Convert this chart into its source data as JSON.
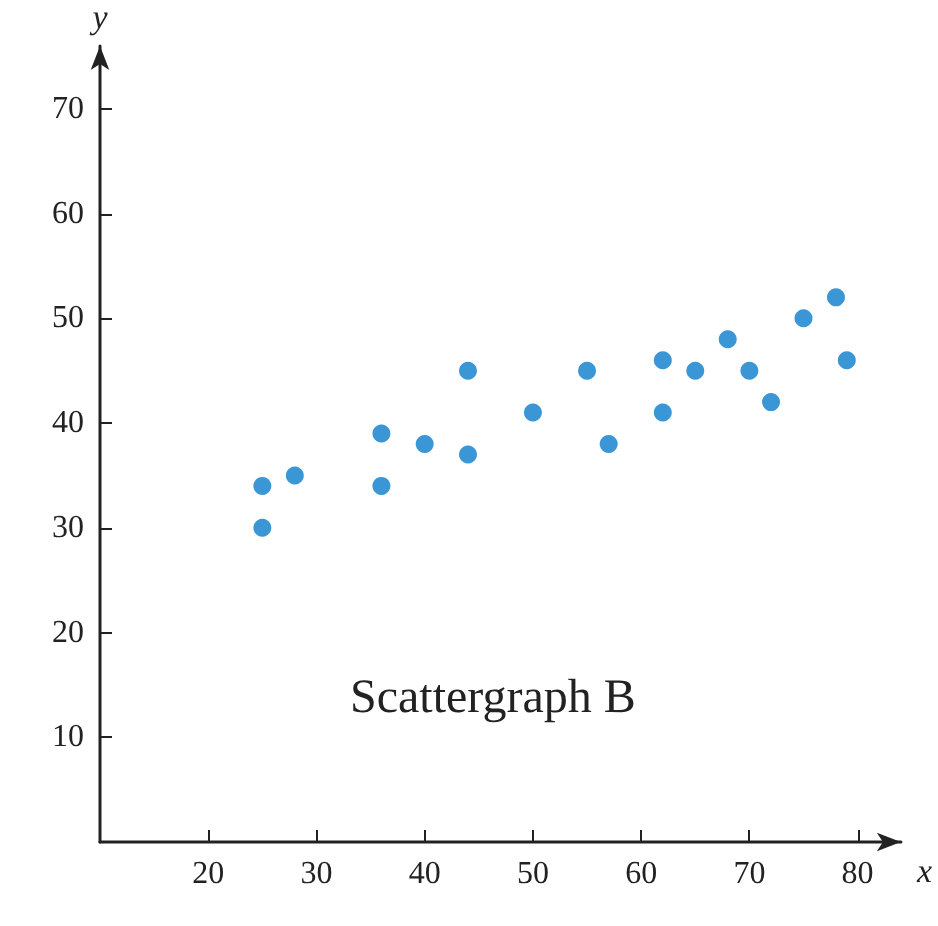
{
  "chart_data": {
    "type": "scatter",
    "xlabel": "x",
    "ylabel": "y",
    "annotations": [
      "Scattergraph B"
    ],
    "x": [
      25,
      25,
      28,
      36,
      36,
      40,
      44,
      44,
      50,
      55,
      57,
      62,
      62,
      65,
      68,
      70,
      72,
      75,
      78,
      79
    ],
    "values": [
      30,
      34,
      35,
      34,
      39,
      38,
      37,
      45,
      41,
      45,
      38,
      41,
      46,
      45,
      48,
      45,
      42,
      50,
      52,
      46
    ],
    "color": "#0a7ccc",
    "marker": "circle",
    "grid": false,
    "xlim": [
      10,
      84
    ],
    "xticks": [
      20,
      30,
      40,
      50,
      60,
      70,
      80
    ],
    "ylim": [
      0,
      76
    ],
    "yticks": [
      10,
      20,
      30,
      40,
      50,
      60,
      70
    ]
  }
}
